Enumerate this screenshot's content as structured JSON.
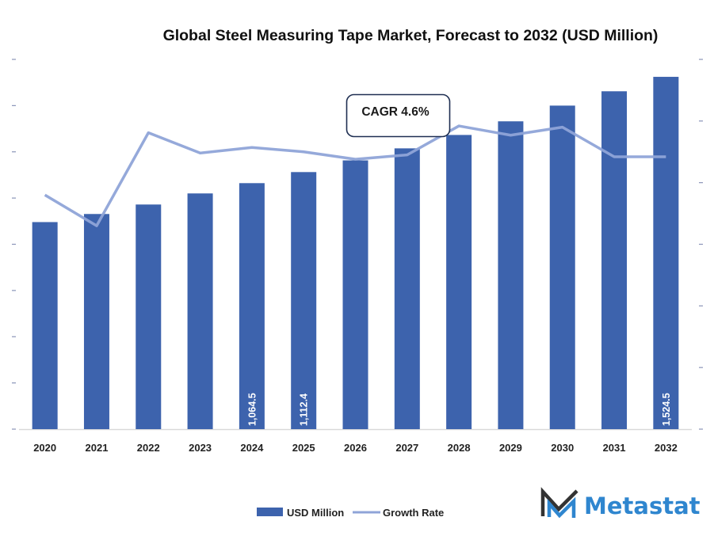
{
  "chart_data": {
    "type": "bar",
    "title": "Global Steel Measuring Tape Market, Forecast to 2032 (USD Million)",
    "xlabel": "",
    "ylabel": "",
    "categories": [
      "2020",
      "2021",
      "2022",
      "2023",
      "2024",
      "2025",
      "2026",
      "2027",
      "2028",
      "2029",
      "2030",
      "2031",
      "2032"
    ],
    "series": [
      {
        "name": "USD Million",
        "type": "bar",
        "axis": "left",
        "color": "#3d63ad",
        "values": [
          896,
          931,
          972,
          1020,
          1064.5,
          1112.4,
          1163,
          1215,
          1273,
          1332,
          1400,
          1462,
          1524.5
        ],
        "data_labels": {
          "4": "1,064.5",
          "5": "1,112.4",
          "12": "1,524.5"
        }
      },
      {
        "name": "Growth Rate",
        "type": "line",
        "axis": "right",
        "color": "#8fa4d8",
        "values": [
          3.8,
          3.3,
          4.81,
          4.48,
          4.57,
          4.5,
          4.38,
          4.45,
          4.92,
          4.77,
          4.9,
          4.42,
          4.42
        ]
      }
    ],
    "ylim": [
      0,
      1600
    ],
    "y2lim": [
      0,
      6
    ],
    "left_axis_tick_count": 9,
    "right_axis_tick_count": 7,
    "tick_labels_visible": false,
    "grid": false,
    "legend": {
      "position": "bottom-center",
      "entries": [
        {
          "label": "USD Million",
          "marker": "bar",
          "color": "#3d63ad"
        },
        {
          "label": "Growth Rate",
          "marker": "line",
          "color": "#8fa4d8"
        }
      ]
    },
    "annotations": [
      {
        "text": "CAGR 4.6%",
        "type": "callout-box"
      }
    ]
  },
  "branding": {
    "logo_text": "Metastat",
    "logo_icon": "metastat-m-logo-icon",
    "logo_color": "#2f86cf",
    "logo_dark_color": "#333333"
  }
}
